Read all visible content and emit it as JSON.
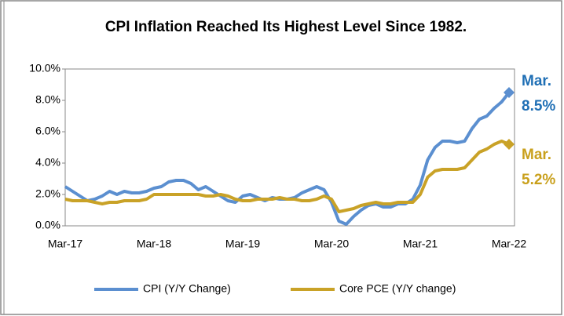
{
  "chart_data": {
    "type": "line",
    "title": "CPI Inflation Reached Its Highest Level Since 1982.",
    "categories": [
      "Mar-17",
      null,
      null,
      null,
      null,
      null,
      null,
      null,
      null,
      null,
      null,
      null,
      "Mar-18",
      null,
      null,
      null,
      null,
      null,
      null,
      null,
      null,
      null,
      null,
      null,
      "Mar-19",
      null,
      null,
      null,
      null,
      null,
      null,
      null,
      null,
      null,
      null,
      null,
      "Mar-20",
      null,
      null,
      null,
      null,
      null,
      null,
      null,
      null,
      null,
      null,
      null,
      "Mar-21",
      null,
      null,
      null,
      null,
      null,
      null,
      null,
      null,
      null,
      null,
      null,
      "Mar-22"
    ],
    "series": [
      {
        "name": "CPI (Y/Y Change)",
        "color": "#5b8fd0",
        "values": [
          2.5,
          2.2,
          1.9,
          1.6,
          1.7,
          1.9,
          2.2,
          2.0,
          2.2,
          2.1,
          2.1,
          2.2,
          2.4,
          2.5,
          2.8,
          2.9,
          2.9,
          2.7,
          2.3,
          2.5,
          2.2,
          1.9,
          1.6,
          1.5,
          1.9,
          2.0,
          1.8,
          1.6,
          1.8,
          1.7,
          1.7,
          1.8,
          2.1,
          2.3,
          2.5,
          2.3,
          1.5,
          0.3,
          0.1,
          0.6,
          1.0,
          1.3,
          1.4,
          1.2,
          1.2,
          1.4,
          1.4,
          1.7,
          2.6,
          4.2,
          5.0,
          5.4,
          5.4,
          5.3,
          5.4,
          6.2,
          6.8,
          7.0,
          7.5,
          7.9,
          8.5
        ]
      },
      {
        "name": "Core PCE (Y/Y change)",
        "color": "#c9a227",
        "values": [
          1.7,
          1.6,
          1.6,
          1.6,
          1.5,
          1.4,
          1.5,
          1.5,
          1.6,
          1.6,
          1.6,
          1.7,
          2.0,
          2.0,
          2.0,
          2.0,
          2.0,
          2.0,
          2.0,
          1.9,
          1.9,
          2.0,
          1.9,
          1.7,
          1.6,
          1.6,
          1.7,
          1.7,
          1.7,
          1.8,
          1.7,
          1.7,
          1.6,
          1.6,
          1.7,
          1.9,
          1.7,
          0.9,
          1.0,
          1.1,
          1.3,
          1.4,
          1.5,
          1.4,
          1.4,
          1.5,
          1.5,
          1.5,
          2.0,
          3.1,
          3.5,
          3.6,
          3.6,
          3.6,
          3.7,
          4.2,
          4.7,
          4.9,
          5.2,
          5.4,
          5.2
        ]
      }
    ],
    "annotations": [
      {
        "lines": [
          "Mar.",
          "8.5%"
        ],
        "color": "#1f6fb5"
      },
      {
        "lines": [
          "Mar.",
          "5.2%"
        ],
        "color": "#c9a01c"
      }
    ],
    "ylim": [
      0,
      10
    ],
    "yticks": [
      {
        "value": 0,
        "label": "0.0%"
      },
      {
        "value": 2,
        "label": "2.0%"
      },
      {
        "value": 4,
        "label": "4.0%"
      },
      {
        "value": 6,
        "label": "6.0%"
      },
      {
        "value": 8,
        "label": "8.0%"
      },
      {
        "value": 10,
        "label": "10.0%"
      }
    ],
    "grid": false,
    "legend": "bottom"
  }
}
